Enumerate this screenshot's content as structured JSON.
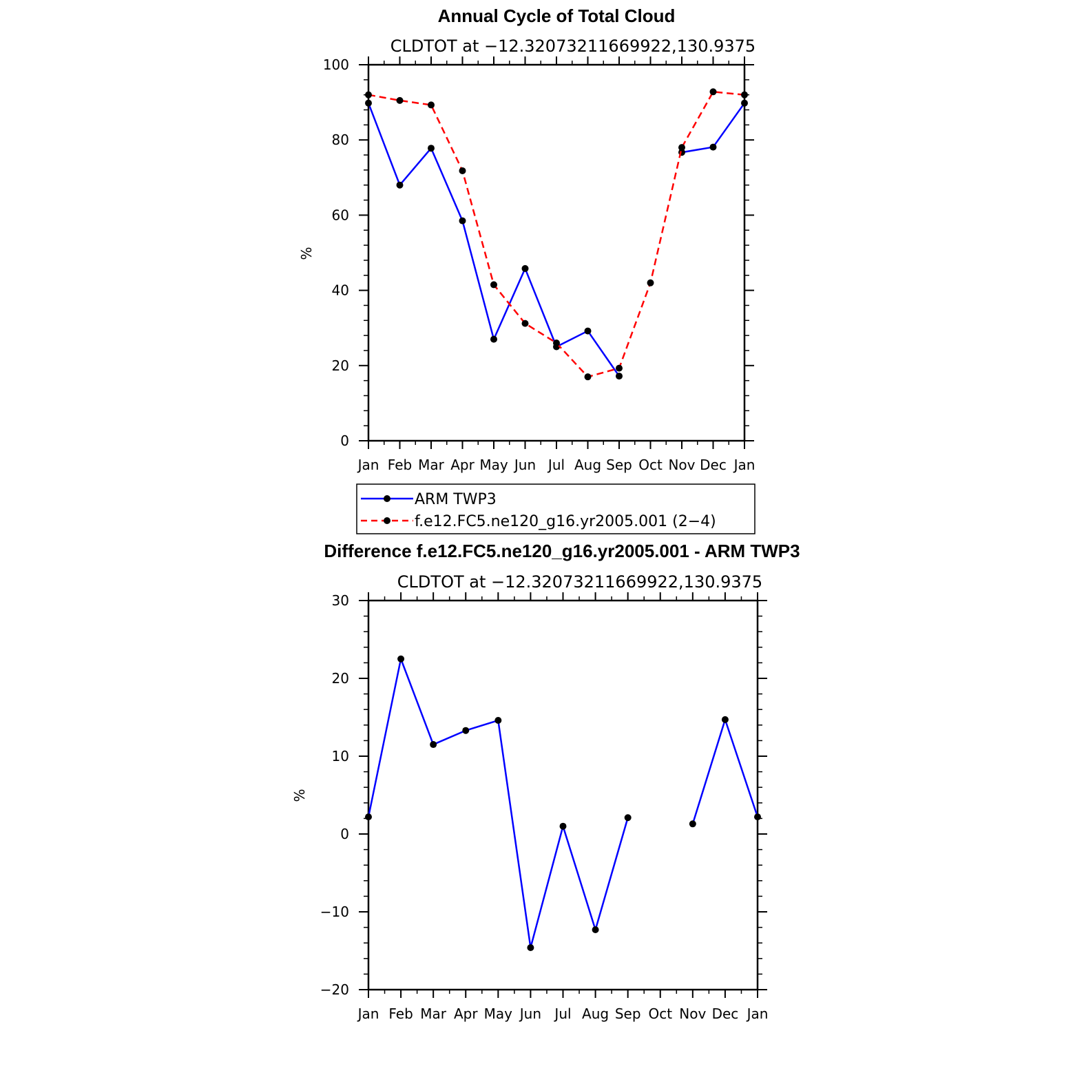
{
  "colors": {
    "arm": "#0000ff",
    "model": "#ff0000",
    "marker": "#000000",
    "axis": "#000000"
  },
  "chart_data": [
    {
      "type": "line",
      "title": "Annual Cycle of Total Cloud",
      "subtitle": "CLDTOT at −12.32073211669922,130.9375",
      "xlabel": "",
      "ylabel": "%",
      "categories": [
        "Jan",
        "Feb",
        "Mar",
        "Apr",
        "May",
        "Jun",
        "Jul",
        "Aug",
        "Sep",
        "Oct",
        "Nov",
        "Dec",
        "Jan"
      ],
      "ylim": [
        0,
        100
      ],
      "yticks": [
        0,
        20,
        40,
        60,
        80,
        100
      ],
      "yticklabels": [
        "0",
        "20",
        "40",
        "60",
        "80",
        "100"
      ],
      "grid": false,
      "series": [
        {
          "name": "ARM TWP3",
          "style": "solid",
          "color": "#0000ff",
          "values": [
            89.8,
            68.0,
            77.8,
            58.5,
            27.0,
            45.8,
            25.0,
            29.2,
            17.2,
            null,
            76.7,
            78.1,
            89.8
          ]
        },
        {
          "name": "f.e12.FC5.ne120_g16.yr2005.001 (2−4)",
          "style": "dashed",
          "color": "#ff0000",
          "values": [
            92.0,
            90.5,
            89.3,
            71.8,
            41.5,
            31.2,
            26.0,
            17.0,
            19.3,
            42.0,
            78.0,
            92.8,
            92.0
          ]
        }
      ],
      "legend": "below"
    },
    {
      "type": "line",
      "title": "Difference f.e12.FC5.ne120_g16.yr2005.001 - ARM TWP3",
      "subtitle": "CLDTOT at −12.32073211669922,130.9375",
      "xlabel": "",
      "ylabel": "%",
      "categories": [
        "Jan",
        "Feb",
        "Mar",
        "Apr",
        "May",
        "Jun",
        "Jul",
        "Aug",
        "Sep",
        "Oct",
        "Nov",
        "Dec",
        "Jan"
      ],
      "ylim": [
        -20,
        30
      ],
      "yticks": [
        -20,
        -10,
        0,
        10,
        20,
        30
      ],
      "yticklabels": [
        "−20",
        "−10",
        "0",
        "10",
        "20",
        "30"
      ],
      "grid": false,
      "series": [
        {
          "color": "#0000ff",
          "style": "solid",
          "values": [
            2.2,
            22.5,
            11.5,
            13.3,
            14.6,
            -14.6,
            1.0,
            -12.3,
            2.1,
            null,
            1.3,
            14.7,
            2.2
          ]
        }
      ]
    }
  ]
}
